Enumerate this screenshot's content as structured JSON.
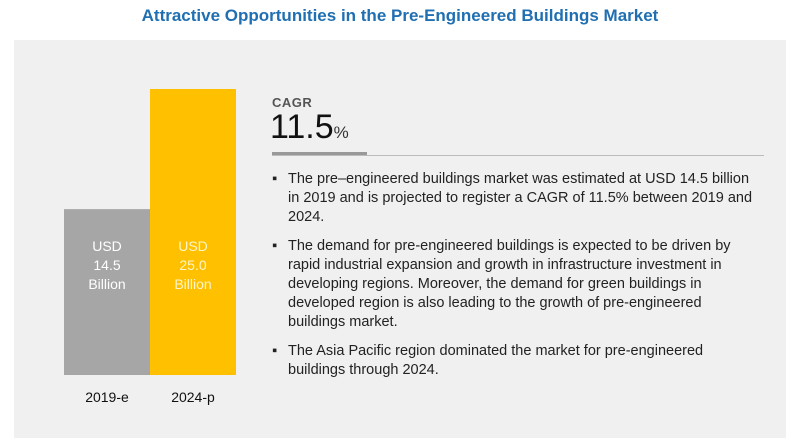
{
  "header": {
    "title": "Attractive Opportunities in the Pre-Engineered Buildings Market"
  },
  "chart_data": {
    "type": "bar",
    "categories": [
      "2019-e",
      "2024-p"
    ],
    "values": [
      14.5,
      25.0
    ],
    "bar_labels": [
      [
        "USD",
        "14.5",
        "Billion"
      ],
      [
        "USD",
        "25.0",
        "Billion"
      ]
    ],
    "bar_colors": [
      "#a6a6a6",
      "#ffc000"
    ],
    "grid": false,
    "legend": "none"
  },
  "cagr": {
    "label": "CAGR",
    "value": "11.5",
    "unit": "%"
  },
  "bullets": [
    "The pre–engineered buildings market was estimated at  USD 14.5 billion in 2019 and is projected to register a CAGR of 11.5% between 2019 and 2024.",
    "The demand for pre-engineered buildings is expected to be driven by rapid industrial expansion and growth in infrastructure investment in developing regions. Moreover, the demand for green buildings in developed region is also leading to the growth of pre-engineered buildings market.",
    "The Asia Pacific region dominated the market for pre-engineered buildings through 2024."
  ],
  "bullet_glyph": "▪"
}
